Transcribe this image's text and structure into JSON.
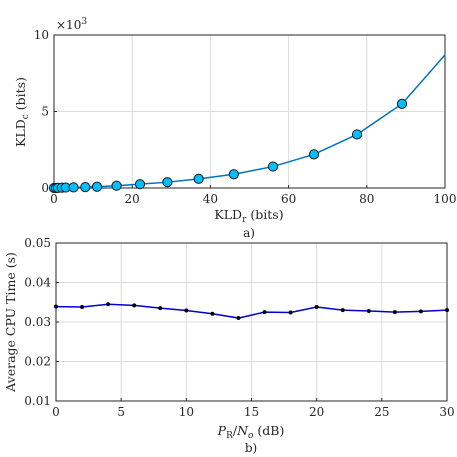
{
  "chart_data": [
    {
      "type": "line",
      "panel_label": "a)",
      "xlabel_main": "KLD",
      "xlabel_sub": "r",
      "xlabel_unit": " (bits)",
      "ylabel_main": "KLD",
      "ylabel_sub": "c",
      "ylabel_unit": " (bits)",
      "exponent_base": "×10",
      "exponent_power": "3",
      "xlim": [
        0,
        100
      ],
      "ylim": [
        0,
        10
      ],
      "xticks": [
        0,
        20,
        40,
        60,
        80,
        100
      ],
      "yticks": [
        0,
        5,
        10
      ],
      "grid": true,
      "line_color": "#0072BD",
      "marker_fill": "#00BFFF",
      "marker_edge": "#1a1a1a",
      "series": [
        {
          "x": [
            0,
            0.5,
            1,
            2,
            3,
            5,
            8,
            11,
            16,
            22,
            29,
            37,
            46,
            56,
            66.5,
            77.5,
            89,
            101
          ],
          "y": [
            0,
            0,
            0.01,
            0.02,
            0.03,
            0.04,
            0.06,
            0.08,
            0.15,
            0.25,
            0.38,
            0.6,
            0.9,
            1.4,
            2.2,
            3.5,
            5.5,
            8.7
          ],
          "markers": [
            true,
            true,
            true,
            true,
            true,
            true,
            true,
            true,
            true,
            true,
            true,
            true,
            true,
            true,
            true,
            true,
            true,
            false
          ]
        }
      ]
    },
    {
      "type": "line",
      "panel_label": "b)",
      "xlabel_p": "P",
      "xlabel_psub": "R",
      "xlabel_slash": "/",
      "xlabel_n": "N",
      "xlabel_nsub": "o",
      "xlabel_unit": " (dB)",
      "ylabel": "Average CPU Time (s)",
      "xlim": [
        0,
        30
      ],
      "ylim": [
        0.01,
        0.05
      ],
      "xticks": [
        0,
        5,
        10,
        15,
        20,
        25,
        30
      ],
      "yticks": [
        "0.01",
        "0.02",
        "0.03",
        "0.04",
        "0.05"
      ],
      "grid": true,
      "line_color": "#0000CD",
      "marker_color": "#000000",
      "series": [
        {
          "x": [
            0,
            2,
            4,
            6,
            8,
            10,
            12,
            14,
            16,
            18,
            20,
            22,
            24,
            26,
            28,
            30
          ],
          "y": [
            0.0339,
            0.0338,
            0.0345,
            0.0342,
            0.0335,
            0.0329,
            0.0321,
            0.031,
            0.0325,
            0.0324,
            0.0338,
            0.033,
            0.0328,
            0.0325,
            0.0327,
            0.033
          ]
        }
      ]
    }
  ]
}
